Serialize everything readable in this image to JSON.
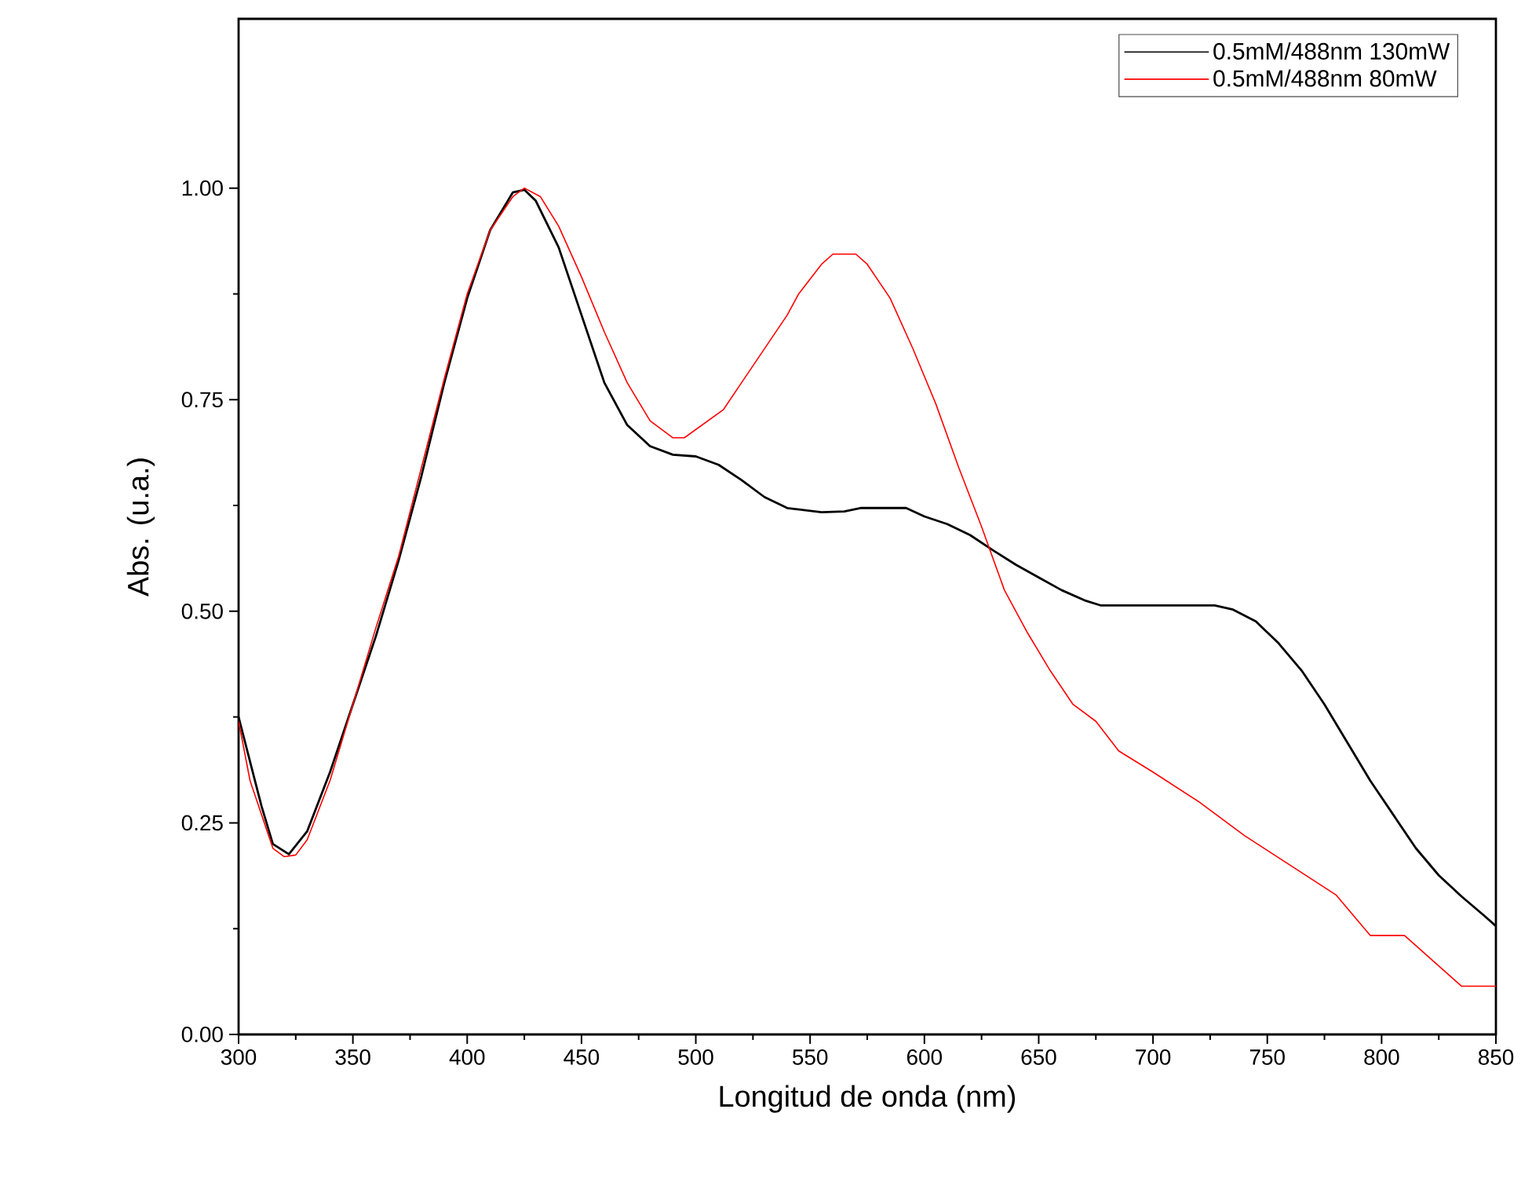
{
  "chart_data": {
    "type": "line",
    "xlabel": "Longitud de onda (nm)",
    "ylabel": "Abs. (u.a.)",
    "xlim": [
      300,
      850
    ],
    "ylim": [
      0,
      1.2
    ],
    "xticks": [
      300,
      350,
      400,
      450,
      500,
      550,
      600,
      650,
      700,
      750,
      800,
      850
    ],
    "yticks": [
      {
        "value": 0,
        "label": "0.00"
      },
      {
        "value": 0.25,
        "label": "0.25"
      },
      {
        "value": 0.5,
        "label": "0.50"
      },
      {
        "value": 0.75,
        "label": "0.75"
      },
      {
        "value": 1,
        "label": "1.00"
      }
    ],
    "grid": false,
    "legend": "top right",
    "marker": "none",
    "line_style": "solid",
    "series": [
      {
        "name": "0.5mM/488nm 130mW",
        "color": "#000000",
        "x": [
          300,
          310,
          315,
          322,
          330,
          340,
          350,
          360,
          370,
          380,
          390,
          400,
          410,
          420,
          425,
          430,
          440,
          450,
          460,
          470,
          480,
          490,
          500,
          510,
          520,
          530,
          540,
          555,
          565,
          572,
          592,
          600,
          610,
          620,
          630,
          640,
          650,
          660,
          670,
          677,
          727,
          735,
          745,
          755,
          765,
          775,
          785,
          795,
          805,
          815,
          825,
          835,
          845,
          850
        ],
        "values": [
          0.375,
          0.27,
          0.225,
          0.213,
          0.24,
          0.31,
          0.39,
          0.47,
          0.56,
          0.66,
          0.77,
          0.87,
          0.95,
          0.995,
          0.998,
          0.985,
          0.93,
          0.85,
          0.77,
          0.72,
          0.695,
          0.685,
          0.683,
          0.673,
          0.655,
          0.635,
          0.622,
          0.617,
          0.618,
          0.622,
          0.622,
          0.612,
          0.603,
          0.59,
          0.572,
          0.555,
          0.54,
          0.525,
          0.513,
          0.507,
          0.507,
          0.502,
          0.488,
          0.462,
          0.43,
          0.39,
          0.345,
          0.3,
          0.26,
          0.22,
          0.188,
          0.163,
          0.14,
          0.128
        ]
      },
      {
        "name": "0.5mM/488nm 80mW",
        "color": "#ff0000",
        "x": [
          300,
          305,
          310,
          315,
          320,
          325,
          330,
          340,
          350,
          360,
          370,
          380,
          390,
          400,
          410,
          420,
          425,
          432,
          440,
          450,
          460,
          470,
          480,
          490,
          495,
          512,
          520,
          530,
          540,
          545,
          555,
          560,
          570,
          575,
          585,
          595,
          605,
          615,
          625,
          635,
          645,
          655,
          665,
          675,
          685,
          700,
          720,
          740,
          760,
          780,
          795,
          810,
          835,
          850
        ],
        "values": [
          0.37,
          0.3,
          0.26,
          0.22,
          0.21,
          0.212,
          0.23,
          0.3,
          0.39,
          0.48,
          0.565,
          0.67,
          0.775,
          0.875,
          0.95,
          0.99,
          1.0,
          0.99,
          0.955,
          0.895,
          0.83,
          0.77,
          0.725,
          0.705,
          0.705,
          0.738,
          0.77,
          0.81,
          0.85,
          0.875,
          0.91,
          0.922,
          0.922,
          0.91,
          0.87,
          0.81,
          0.745,
          0.67,
          0.6,
          0.525,
          0.475,
          0.43,
          0.39,
          0.37,
          0.335,
          0.31,
          0.275,
          0.235,
          0.2,
          0.165,
          0.117,
          0.117,
          0.057,
          0.057
        ]
      }
    ]
  }
}
